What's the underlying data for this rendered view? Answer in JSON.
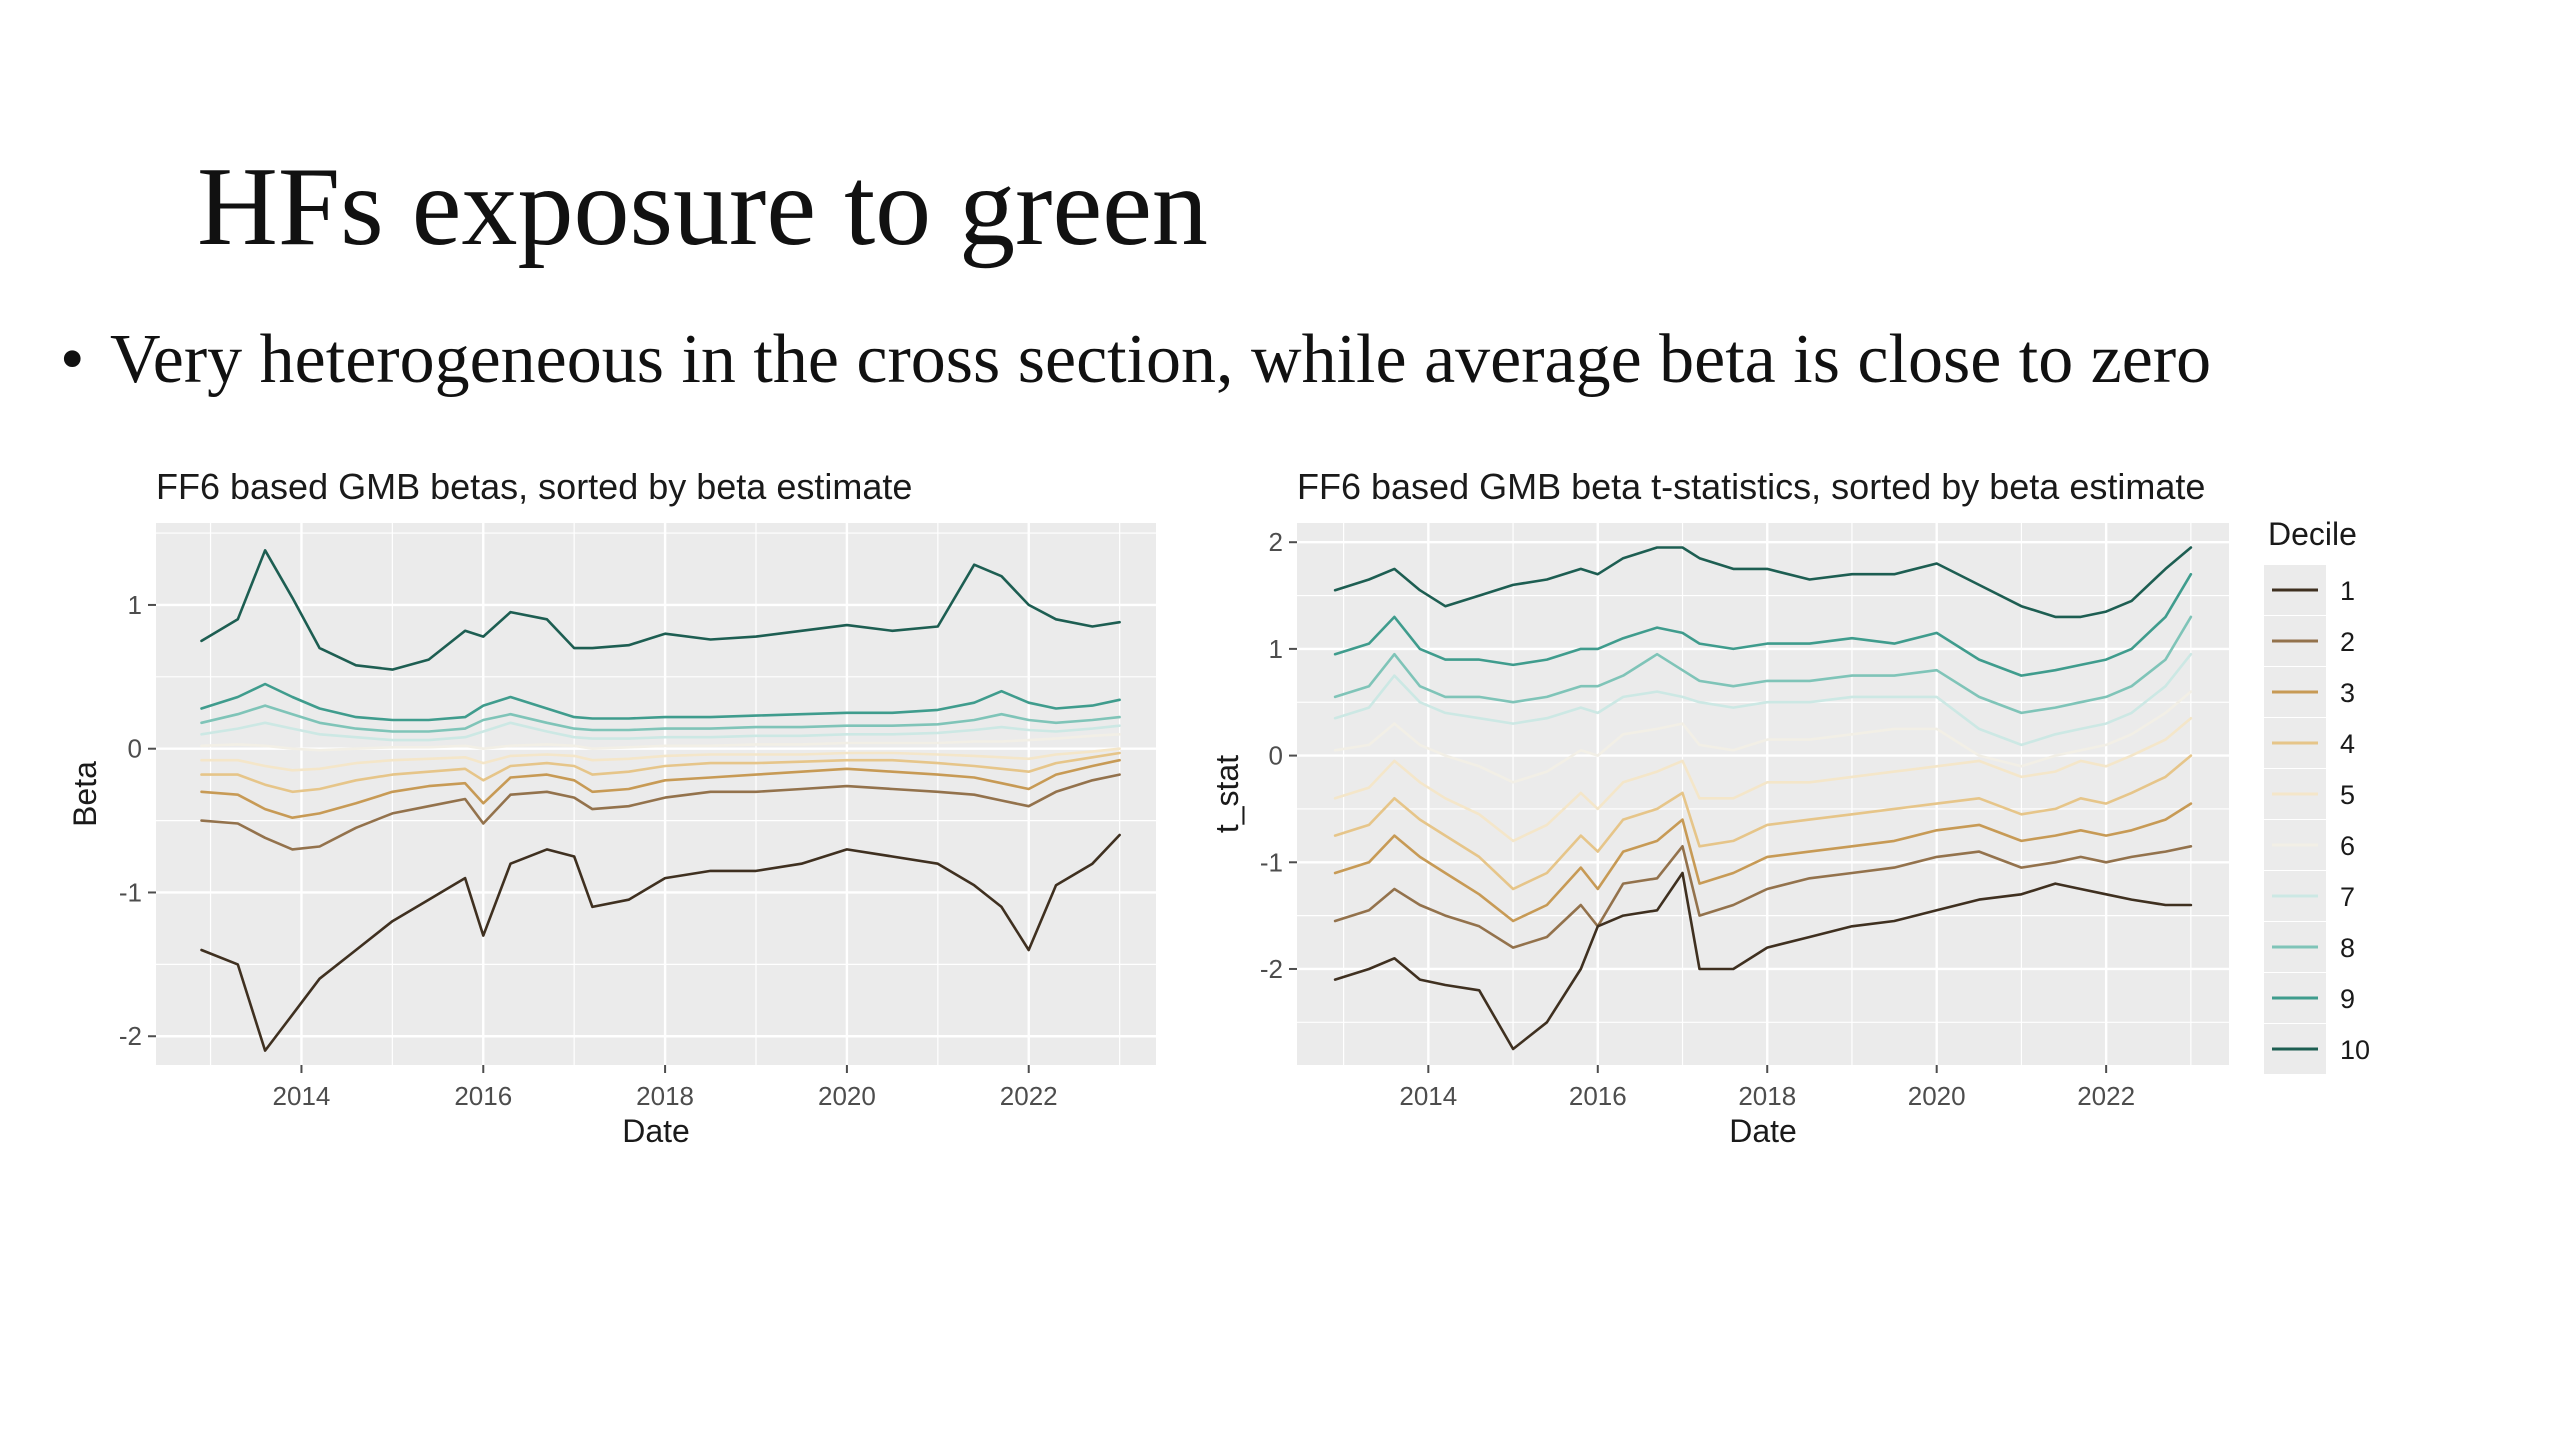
{
  "slide": {
    "title": "HFs exposure to green",
    "bullet": "Very heterogeneous in the cross section, while average beta is close to zero"
  },
  "legend": {
    "title": "Decile",
    "items": [
      "1",
      "2",
      "3",
      "4",
      "5",
      "6",
      "7",
      "8",
      "9",
      "10"
    ]
  },
  "colors": {
    "panel": "#ebebeb",
    "grid": "#ffffff",
    "deciles": [
      "#3f3020",
      "#93724c",
      "#c79a55",
      "#e6c589",
      "#f4e6c9",
      "#f2efe6",
      "#cce8e4",
      "#7fc4b8",
      "#3f9c8d",
      "#1d5e52"
    ]
  },
  "chart_data": [
    {
      "type": "line",
      "title": "FF6 based GMB betas, sorted by beta estimate",
      "xlabel": "Date",
      "ylabel": "Beta",
      "xlim": [
        2012.4,
        2023.4
      ],
      "ylim": [
        -2.2,
        1.57
      ],
      "x_ticks": [
        2014,
        2016,
        2018,
        2020,
        2022
      ],
      "y_ticks": [
        -2,
        -1,
        0,
        1
      ],
      "x": [
        2012.9,
        2013.3,
        2013.6,
        2013.9,
        2014.2,
        2014.6,
        2015.0,
        2015.4,
        2015.8,
        2016.0,
        2016.3,
        2016.7,
        2017.0,
        2017.2,
        2017.6,
        2018.0,
        2018.5,
        2019.0,
        2019.5,
        2020.0,
        2020.5,
        2021.0,
        2021.4,
        2021.7,
        2022.0,
        2022.3,
        2022.7,
        2023.0
      ],
      "series": [
        {
          "name": "1",
          "values": [
            -1.4,
            -1.5,
            -2.1,
            -1.85,
            -1.6,
            -1.4,
            -1.2,
            -1.05,
            -0.9,
            -1.3,
            -0.8,
            -0.7,
            -0.75,
            -1.1,
            -1.05,
            -0.9,
            -0.85,
            -0.85,
            -0.8,
            -0.7,
            -0.75,
            -0.8,
            -0.95,
            -1.1,
            -1.4,
            -0.95,
            -0.8,
            -0.6
          ]
        },
        {
          "name": "2",
          "values": [
            -0.5,
            -0.52,
            -0.62,
            -0.7,
            -0.68,
            -0.55,
            -0.45,
            -0.4,
            -0.35,
            -0.52,
            -0.32,
            -0.3,
            -0.34,
            -0.42,
            -0.4,
            -0.34,
            -0.3,
            -0.3,
            -0.28,
            -0.26,
            -0.28,
            -0.3,
            -0.32,
            -0.36,
            -0.4,
            -0.3,
            -0.22,
            -0.18
          ]
        },
        {
          "name": "3",
          "values": [
            -0.3,
            -0.32,
            -0.42,
            -0.48,
            -0.45,
            -0.38,
            -0.3,
            -0.26,
            -0.24,
            -0.38,
            -0.2,
            -0.18,
            -0.22,
            -0.3,
            -0.28,
            -0.22,
            -0.2,
            -0.18,
            -0.16,
            -0.14,
            -0.16,
            -0.18,
            -0.2,
            -0.24,
            -0.28,
            -0.18,
            -0.12,
            -0.08
          ]
        },
        {
          "name": "4",
          "values": [
            -0.18,
            -0.18,
            -0.25,
            -0.3,
            -0.28,
            -0.22,
            -0.18,
            -0.16,
            -0.14,
            -0.22,
            -0.12,
            -0.1,
            -0.12,
            -0.18,
            -0.16,
            -0.12,
            -0.1,
            -0.1,
            -0.09,
            -0.08,
            -0.08,
            -0.1,
            -0.12,
            -0.14,
            -0.16,
            -0.1,
            -0.06,
            -0.03
          ]
        },
        {
          "name": "5",
          "values": [
            -0.08,
            -0.08,
            -0.12,
            -0.15,
            -0.14,
            -0.1,
            -0.08,
            -0.07,
            -0.06,
            -0.1,
            -0.05,
            -0.04,
            -0.05,
            -0.08,
            -0.07,
            -0.05,
            -0.04,
            -0.04,
            -0.04,
            -0.03,
            -0.03,
            -0.04,
            -0.05,
            -0.06,
            -0.07,
            -0.04,
            -0.02,
            0.0
          ]
        },
        {
          "name": "6",
          "values": [
            0.02,
            0.03,
            0.02,
            0.0,
            -0.01,
            0.0,
            0.01,
            0.01,
            0.02,
            0.0,
            0.02,
            0.03,
            0.02,
            0.0,
            0.01,
            0.02,
            0.02,
            0.03,
            0.03,
            0.04,
            0.04,
            0.04,
            0.05,
            0.05,
            0.06,
            0.07,
            0.09,
            0.1
          ]
        },
        {
          "name": "7",
          "values": [
            0.1,
            0.14,
            0.18,
            0.14,
            0.1,
            0.08,
            0.06,
            0.06,
            0.08,
            0.12,
            0.18,
            0.12,
            0.08,
            0.07,
            0.07,
            0.08,
            0.08,
            0.09,
            0.09,
            0.1,
            0.1,
            0.11,
            0.13,
            0.15,
            0.13,
            0.12,
            0.14,
            0.16
          ]
        },
        {
          "name": "8",
          "values": [
            0.18,
            0.24,
            0.3,
            0.24,
            0.18,
            0.14,
            0.12,
            0.12,
            0.14,
            0.2,
            0.24,
            0.18,
            0.14,
            0.13,
            0.13,
            0.14,
            0.14,
            0.15,
            0.15,
            0.16,
            0.16,
            0.17,
            0.2,
            0.24,
            0.2,
            0.18,
            0.2,
            0.22
          ]
        },
        {
          "name": "9",
          "values": [
            0.28,
            0.36,
            0.45,
            0.36,
            0.28,
            0.22,
            0.2,
            0.2,
            0.22,
            0.3,
            0.36,
            0.28,
            0.22,
            0.21,
            0.21,
            0.22,
            0.22,
            0.23,
            0.24,
            0.25,
            0.25,
            0.27,
            0.32,
            0.4,
            0.32,
            0.28,
            0.3,
            0.34
          ]
        },
        {
          "name": "10",
          "values": [
            0.75,
            0.9,
            1.38,
            1.05,
            0.7,
            0.58,
            0.55,
            0.62,
            0.82,
            0.78,
            0.95,
            0.9,
            0.7,
            0.7,
            0.72,
            0.8,
            0.76,
            0.78,
            0.82,
            0.86,
            0.82,
            0.85,
            1.28,
            1.2,
            1.0,
            0.9,
            0.85,
            0.88
          ]
        }
      ]
    },
    {
      "type": "line",
      "title": "FF6 based GMB beta t-statistics, sorted by beta estimate",
      "xlabel": "Date",
      "ylabel": "t_stat",
      "xlim": [
        2012.45,
        2023.45
      ],
      "ylim": [
        -2.9,
        2.18
      ],
      "x_ticks": [
        2014,
        2016,
        2018,
        2020,
        2022
      ],
      "y_ticks": [
        -2,
        -1,
        0,
        1,
        2
      ],
      "x": [
        2012.9,
        2013.3,
        2013.6,
        2013.9,
        2014.2,
        2014.6,
        2015.0,
        2015.4,
        2015.8,
        2016.0,
        2016.3,
        2016.7,
        2017.0,
        2017.2,
        2017.6,
        2018.0,
        2018.5,
        2019.0,
        2019.5,
        2020.0,
        2020.5,
        2021.0,
        2021.4,
        2021.7,
        2022.0,
        2022.3,
        2022.7,
        2023.0
      ],
      "series": [
        {
          "name": "1",
          "values": [
            -2.1,
            -2.0,
            -1.9,
            -2.1,
            -2.15,
            -2.2,
            -2.75,
            -2.5,
            -2.0,
            -1.6,
            -1.5,
            -1.45,
            -1.1,
            -2.0,
            -2.0,
            -1.8,
            -1.7,
            -1.6,
            -1.55,
            -1.45,
            -1.35,
            -1.3,
            -1.2,
            -1.25,
            -1.3,
            -1.35,
            -1.4,
            -1.4
          ]
        },
        {
          "name": "2",
          "values": [
            -1.55,
            -1.45,
            -1.25,
            -1.4,
            -1.5,
            -1.6,
            -1.8,
            -1.7,
            -1.4,
            -1.6,
            -1.2,
            -1.15,
            -0.85,
            -1.5,
            -1.4,
            -1.25,
            -1.15,
            -1.1,
            -1.05,
            -0.95,
            -0.9,
            -1.05,
            -1.0,
            -0.95,
            -1.0,
            -0.95,
            -0.9,
            -0.85
          ]
        },
        {
          "name": "3",
          "values": [
            -1.1,
            -1.0,
            -0.75,
            -0.95,
            -1.1,
            -1.3,
            -1.55,
            -1.4,
            -1.05,
            -1.25,
            -0.9,
            -0.8,
            -0.6,
            -1.2,
            -1.1,
            -0.95,
            -0.9,
            -0.85,
            -0.8,
            -0.7,
            -0.65,
            -0.8,
            -0.75,
            -0.7,
            -0.75,
            -0.7,
            -0.6,
            -0.45
          ]
        },
        {
          "name": "4",
          "values": [
            -0.75,
            -0.65,
            -0.4,
            -0.6,
            -0.75,
            -0.95,
            -1.25,
            -1.1,
            -0.75,
            -0.9,
            -0.6,
            -0.5,
            -0.35,
            -0.85,
            -0.8,
            -0.65,
            -0.6,
            -0.55,
            -0.5,
            -0.45,
            -0.4,
            -0.55,
            -0.5,
            -0.4,
            -0.45,
            -0.35,
            -0.2,
            0.0
          ]
        },
        {
          "name": "5",
          "values": [
            -0.4,
            -0.3,
            -0.05,
            -0.25,
            -0.4,
            -0.55,
            -0.8,
            -0.65,
            -0.35,
            -0.5,
            -0.25,
            -0.15,
            -0.05,
            -0.4,
            -0.4,
            -0.25,
            -0.25,
            -0.2,
            -0.15,
            -0.1,
            -0.05,
            -0.2,
            -0.15,
            -0.05,
            -0.1,
            0.0,
            0.15,
            0.35
          ]
        },
        {
          "name": "6",
          "values": [
            0.05,
            0.1,
            0.3,
            0.1,
            0.0,
            -0.1,
            -0.25,
            -0.15,
            0.05,
            0.0,
            0.2,
            0.25,
            0.3,
            0.1,
            0.05,
            0.15,
            0.15,
            0.2,
            0.25,
            0.25,
            0.0,
            -0.1,
            0.0,
            0.05,
            0.1,
            0.2,
            0.4,
            0.6
          ]
        },
        {
          "name": "7",
          "values": [
            0.35,
            0.45,
            0.75,
            0.5,
            0.4,
            0.35,
            0.3,
            0.35,
            0.45,
            0.4,
            0.55,
            0.6,
            0.55,
            0.5,
            0.45,
            0.5,
            0.5,
            0.55,
            0.55,
            0.55,
            0.25,
            0.1,
            0.2,
            0.25,
            0.3,
            0.4,
            0.65,
            0.95
          ]
        },
        {
          "name": "8",
          "values": [
            0.55,
            0.65,
            0.95,
            0.65,
            0.55,
            0.55,
            0.5,
            0.55,
            0.65,
            0.65,
            0.75,
            0.95,
            0.8,
            0.7,
            0.65,
            0.7,
            0.7,
            0.75,
            0.75,
            0.8,
            0.55,
            0.4,
            0.45,
            0.5,
            0.55,
            0.65,
            0.9,
            1.3
          ]
        },
        {
          "name": "9",
          "values": [
            0.95,
            1.05,
            1.3,
            1.0,
            0.9,
            0.9,
            0.85,
            0.9,
            1.0,
            1.0,
            1.1,
            1.2,
            1.15,
            1.05,
            1.0,
            1.05,
            1.05,
            1.1,
            1.05,
            1.15,
            0.9,
            0.75,
            0.8,
            0.85,
            0.9,
            1.0,
            1.3,
            1.7
          ]
        },
        {
          "name": "10",
          "values": [
            1.55,
            1.65,
            1.75,
            1.55,
            1.4,
            1.5,
            1.6,
            1.65,
            1.75,
            1.7,
            1.85,
            1.95,
            1.95,
            1.85,
            1.75,
            1.75,
            1.65,
            1.7,
            1.7,
            1.8,
            1.6,
            1.4,
            1.3,
            1.3,
            1.35,
            1.45,
            1.75,
            1.95
          ]
        }
      ]
    }
  ]
}
